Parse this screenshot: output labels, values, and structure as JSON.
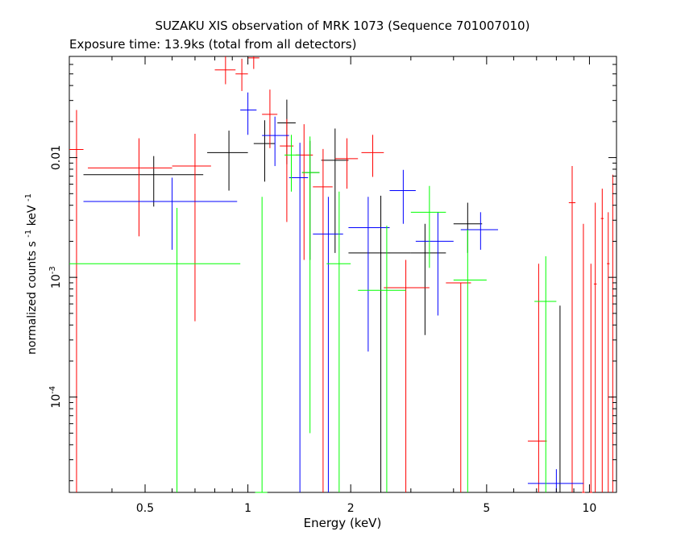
{
  "chart_data": {
    "type": "scatter",
    "title": "SUZAKU XIS observation of MRK 1073 (Sequence 701007010)",
    "subtitle": "Exposure time: 13.9ks (total from all detectors)",
    "xlabel": "Energy (keV)",
    "ylabel": {
      "main": "normalized counts s",
      "sup1": "-1",
      "mid": " keV",
      "sup2": "-1"
    },
    "x_scale": "log",
    "y_scale": "log",
    "xlim": [
      0.3,
      12
    ],
    "ylim": [
      1.6e-05,
      0.07
    ],
    "x_ticks": [
      {
        "value": 0.5,
        "label": "0.5"
      },
      {
        "value": 1,
        "label": "1"
      },
      {
        "value": 2,
        "label": "2"
      },
      {
        "value": 5,
        "label": "5"
      },
      {
        "value": 10,
        "label": "10"
      }
    ],
    "y_ticks": [
      {
        "value": 0.01,
        "label": "0.01",
        "sup": ""
      },
      {
        "value": 0.001,
        "label": "10",
        "sup": "-3"
      },
      {
        "value": 0.0001,
        "label": "10",
        "sup": "-4"
      }
    ],
    "grid": false,
    "series": [
      {
        "color": "#000000",
        "points": [
          {
            "x": 0.53,
            "xlo": 0.33,
            "xhi": 0.74,
            "y": 0.0072,
            "ylo": 0.0039,
            "yhi": 0.0103
          },
          {
            "x": 0.88,
            "xlo": 0.76,
            "xhi": 1.0,
            "y": 0.011,
            "ylo": 0.0053,
            "yhi": 0.0168
          },
          {
            "x": 1.12,
            "xlo": 1.04,
            "xhi": 1.2,
            "y": 0.0131,
            "ylo": 0.0063,
            "yhi": 0.0205
          },
          {
            "x": 1.3,
            "xlo": 1.22,
            "xhi": 1.38,
            "y": 0.0195,
            "ylo": 0.0088,
            "yhi": 0.0305
          },
          {
            "x": 1.52,
            "xlo": 1.44,
            "xhi": 1.62,
            "y": 0.0075,
            "ylo": 0.0014,
            "yhi": 0.0138
          },
          {
            "x": 1.8,
            "xlo": 1.64,
            "xhi": 1.97,
            "y": 0.0095,
            "ylo": 0.0016,
            "yhi": 0.0175
          },
          {
            "x": 2.45,
            "xlo": 1.97,
            "xhi": 3.0,
            "y": 0.0016,
            "ylo": 1.6e-05,
            "yhi": 0.0048
          },
          {
            "x": 3.3,
            "xlo": 3.0,
            "xhi": 3.8,
            "y": 0.0016,
            "ylo": 0.00033,
            "yhi": 0.0028
          },
          {
            "x": 4.4,
            "xlo": 4.0,
            "xhi": 4.85,
            "y": 0.0028,
            "ylo": 0.0016,
            "yhi": 0.0042
          },
          {
            "x": 8.2,
            "xlo": 7.2,
            "xhi": 9.3,
            "y": 1.6e-05,
            "ylo": 1.6e-05,
            "yhi": 0.00058
          }
        ]
      },
      {
        "color": "#ff0000",
        "points": [
          {
            "x": 0.315,
            "xlo": 0.3,
            "xhi": 0.33,
            "y": 0.0117,
            "ylo": 1.6e-05,
            "yhi": 0.025
          },
          {
            "x": 0.48,
            "xlo": 0.34,
            "xhi": 0.6,
            "y": 0.0082,
            "ylo": 0.0022,
            "yhi": 0.0145
          },
          {
            "x": 0.7,
            "xlo": 0.6,
            "xhi": 0.78,
            "y": 0.0085,
            "ylo": 0.00043,
            "yhi": 0.0158
          },
          {
            "x": 0.86,
            "xlo": 0.8,
            "xhi": 0.92,
            "y": 0.054,
            "ylo": 0.041,
            "yhi": 0.07
          },
          {
            "x": 0.96,
            "xlo": 0.92,
            "xhi": 1.0,
            "y": 0.05,
            "ylo": 0.036,
            "yhi": 0.067
          },
          {
            "x": 1.04,
            "xlo": 1.0,
            "xhi": 1.08,
            "y": 0.068,
            "ylo": 0.055,
            "yhi": 0.07
          },
          {
            "x": 1.16,
            "xlo": 1.1,
            "xhi": 1.22,
            "y": 0.023,
            "ylo": 0.012,
            "yhi": 0.037
          },
          {
            "x": 1.3,
            "xlo": 1.24,
            "xhi": 1.36,
            "y": 0.0125,
            "ylo": 0.0029,
            "yhi": 0.021
          },
          {
            "x": 1.46,
            "xlo": 1.38,
            "xhi": 1.55,
            "y": 0.0105,
            "ylo": 0.0014,
            "yhi": 0.019
          },
          {
            "x": 1.66,
            "xlo": 1.55,
            "xhi": 1.77,
            "y": 0.0057,
            "ylo": 1.6e-05,
            "yhi": 0.0118
          },
          {
            "x": 1.95,
            "xlo": 1.8,
            "xhi": 2.1,
            "y": 0.0098,
            "ylo": 0.0055,
            "yhi": 0.0145
          },
          {
            "x": 2.32,
            "xlo": 2.15,
            "xhi": 2.5,
            "y": 0.011,
            "ylo": 0.0069,
            "yhi": 0.0155
          },
          {
            "x": 2.9,
            "xlo": 2.5,
            "xhi": 3.4,
            "y": 0.00082,
            "ylo": 1.6e-05,
            "yhi": 0.0014
          },
          {
            "x": 4.2,
            "xlo": 3.8,
            "xhi": 4.5,
            "y": 0.0009,
            "ylo": 1.6e-05,
            "yhi": 0.0009
          },
          {
            "x": 7.1,
            "xlo": 6.6,
            "xhi": 7.5,
            "y": 4.3e-05,
            "ylo": 1.6e-05,
            "yhi": 0.0013
          },
          {
            "x": 8.9,
            "xlo": 8.7,
            "xhi": 9.1,
            "y": 0.0042,
            "ylo": 1.6e-05,
            "yhi": 0.0085
          },
          {
            "x": 9.6,
            "xlo": 9.5,
            "xhi": 9.7,
            "y": 1.6e-05,
            "ylo": 1.6e-05,
            "yhi": 0.0028
          },
          {
            "x": 10.1,
            "xlo": 10.0,
            "xhi": 10.2,
            "y": 1.6e-05,
            "ylo": 1.6e-05,
            "yhi": 0.0013
          },
          {
            "x": 10.4,
            "xlo": 10.3,
            "xhi": 10.5,
            "y": 0.00088,
            "ylo": 1.6e-05,
            "yhi": 0.0042
          },
          {
            "x": 10.9,
            "xlo": 10.8,
            "xhi": 11.0,
            "y": 0.0031,
            "ylo": 1.6e-05,
            "yhi": 0.0055
          },
          {
            "x": 11.35,
            "xlo": 11.25,
            "xhi": 11.45,
            "y": 0.0013,
            "ylo": 1.6e-05,
            "yhi": 0.0035
          },
          {
            "x": 11.7,
            "xlo": 11.6,
            "xhi": 11.8,
            "y": 0.0001,
            "ylo": 1.6e-05,
            "yhi": 0.0072
          }
        ]
      },
      {
        "color": "#0000ff",
        "points": [
          {
            "x": 0.6,
            "xlo": 0.33,
            "xhi": 0.93,
            "y": 0.0043,
            "ylo": 0.0017,
            "yhi": 0.0068
          },
          {
            "x": 1.0,
            "xlo": 0.95,
            "xhi": 1.06,
            "y": 0.025,
            "ylo": 0.0155,
            "yhi": 0.035
          },
          {
            "x": 1.2,
            "xlo": 1.1,
            "xhi": 1.32,
            "y": 0.0153,
            "ylo": 0.0085,
            "yhi": 0.022
          },
          {
            "x": 1.42,
            "xlo": 1.32,
            "xhi": 1.5,
            "y": 0.0068,
            "ylo": 1.6e-05,
            "yhi": 0.0133
          },
          {
            "x": 1.72,
            "xlo": 1.55,
            "xhi": 1.9,
            "y": 0.0023,
            "ylo": 1.6e-05,
            "yhi": 0.0047
          },
          {
            "x": 2.25,
            "xlo": 1.97,
            "xhi": 2.6,
            "y": 0.0026,
            "ylo": 0.00024,
            "yhi": 0.0047
          },
          {
            "x": 2.85,
            "xlo": 2.6,
            "xhi": 3.1,
            "y": 0.0053,
            "ylo": 0.0028,
            "yhi": 0.0079
          },
          {
            "x": 3.6,
            "xlo": 3.1,
            "xhi": 4.0,
            "y": 0.002,
            "ylo": 0.00048,
            "yhi": 0.0035
          },
          {
            "x": 4.8,
            "xlo": 4.2,
            "xhi": 5.4,
            "y": 0.0025,
            "ylo": 0.0017,
            "yhi": 0.0035
          },
          {
            "x": 8.0,
            "xlo": 6.6,
            "xhi": 9.6,
            "y": 1.9e-05,
            "ylo": 1.6e-05,
            "yhi": 2.5e-05
          }
        ]
      },
      {
        "color": "#00ff00",
        "points": [
          {
            "x": 0.62,
            "xlo": 0.3,
            "xhi": 0.95,
            "y": 0.0013,
            "ylo": 1.6e-05,
            "yhi": 0.0038
          },
          {
            "x": 1.1,
            "xlo": 1.05,
            "xhi": 1.14,
            "y": 1.6e-05,
            "ylo": 1.6e-05,
            "yhi": 0.0047
          },
          {
            "x": 1.34,
            "xlo": 1.28,
            "xhi": 1.42,
            "y": 0.0105,
            "ylo": 0.0052,
            "yhi": 0.0155
          },
          {
            "x": 1.52,
            "xlo": 1.44,
            "xhi": 1.62,
            "y": 0.0075,
            "ylo": 5e-05,
            "yhi": 0.015
          },
          {
            "x": 1.85,
            "xlo": 1.7,
            "xhi": 2.0,
            "y": 0.0013,
            "ylo": 1.6e-05,
            "yhi": 0.0052
          },
          {
            "x": 2.55,
            "xlo": 2.1,
            "xhi": 2.9,
            "y": 0.00078,
            "ylo": 1.6e-05,
            "yhi": 0.0027
          },
          {
            "x": 3.4,
            "xlo": 3.0,
            "xhi": 3.8,
            "y": 0.0035,
            "ylo": 0.0012,
            "yhi": 0.0058
          },
          {
            "x": 4.4,
            "xlo": 4.0,
            "xhi": 5.0,
            "y": 0.00095,
            "ylo": 1.6e-05,
            "yhi": 0.0025
          },
          {
            "x": 7.45,
            "xlo": 6.9,
            "xhi": 8.0,
            "y": 0.00063,
            "ylo": 1.6e-05,
            "yhi": 0.0015
          }
        ]
      }
    ]
  }
}
